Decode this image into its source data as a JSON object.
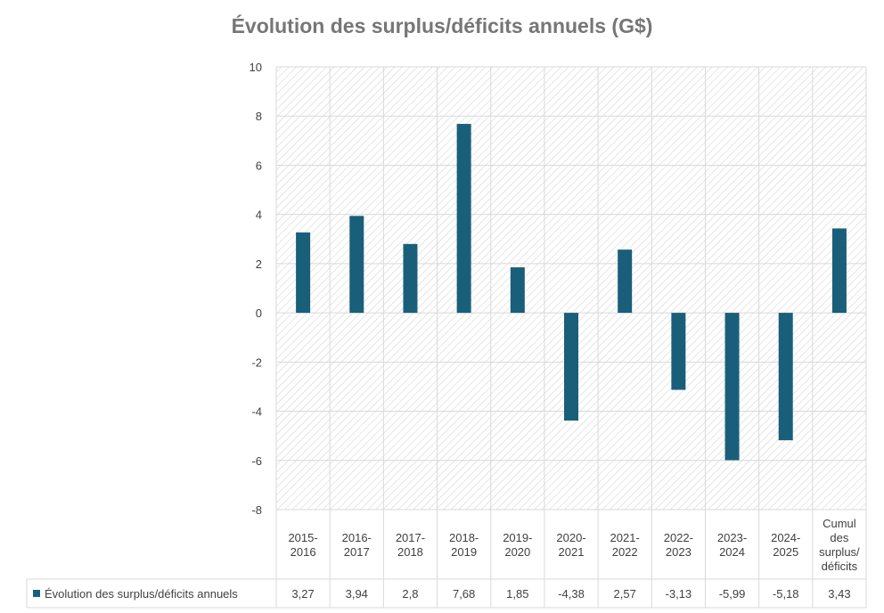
{
  "chart_data": {
    "type": "bar",
    "title": "Évolution des surplus/déficits annuels (G$)",
    "categories": [
      [
        "2015-",
        "2016"
      ],
      [
        "2016-",
        "2017"
      ],
      [
        "2017-",
        "2018"
      ],
      [
        "2018-",
        "2019"
      ],
      [
        "2019-",
        "2020"
      ],
      [
        "2020-",
        "2021"
      ],
      [
        "2021-",
        "2022"
      ],
      [
        "2022-",
        "2023"
      ],
      [
        "2023-",
        "2024"
      ],
      [
        "2024-",
        "2025"
      ],
      [
        "Cumul",
        "des",
        "surplus/",
        "déficits"
      ]
    ],
    "series": [
      {
        "name": "Évolution des surplus/déficits annuels",
        "values": [
          3.27,
          3.94,
          2.8,
          7.68,
          1.85,
          -4.38,
          2.57,
          -3.13,
          -5.99,
          -5.18,
          3.43
        ],
        "labels": [
          "3,27",
          "3,94",
          "2,8",
          "7,68",
          "1,85",
          "-4,38",
          "2,57",
          "-3,13",
          "-5,99",
          "-5,18",
          "3,43"
        ],
        "color": "#1a5f7a"
      }
    ],
    "ylim": [
      -8,
      10
    ],
    "yticks": [
      10,
      8,
      6,
      4,
      2,
      0,
      -2,
      -4,
      -6,
      -8
    ],
    "grid": true,
    "legend": "data-table-left",
    "data_table": true
  },
  "colors": {
    "bar": "#1a5f7a",
    "grid": "#d9d9d9",
    "hatch": "#d6d6d6",
    "title": "#767676"
  }
}
